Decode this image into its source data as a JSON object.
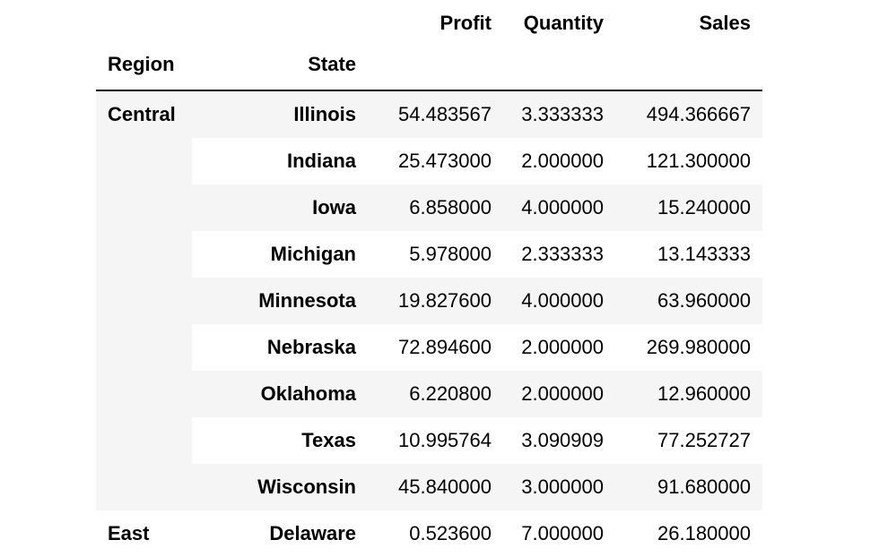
{
  "columns": {
    "profit": "Profit",
    "quantity": "Quantity",
    "sales": "Sales"
  },
  "index_names": {
    "region": "Region",
    "state": "State"
  },
  "rows": [
    {
      "region": "Central",
      "state": "Illinois",
      "profit": "54.483567",
      "quantity": "3.333333",
      "sales": "494.366667"
    },
    {
      "region": "",
      "state": "Indiana",
      "profit": "25.473000",
      "quantity": "2.000000",
      "sales": "121.300000"
    },
    {
      "region": "",
      "state": "Iowa",
      "profit": "6.858000",
      "quantity": "4.000000",
      "sales": "15.240000"
    },
    {
      "region": "",
      "state": "Michigan",
      "profit": "5.978000",
      "quantity": "2.333333",
      "sales": "13.143333"
    },
    {
      "region": "",
      "state": "Minnesota",
      "profit": "19.827600",
      "quantity": "4.000000",
      "sales": "63.960000"
    },
    {
      "region": "",
      "state": "Nebraska",
      "profit": "72.894600",
      "quantity": "2.000000",
      "sales": "269.980000"
    },
    {
      "region": "",
      "state": "Oklahoma",
      "profit": "6.220800",
      "quantity": "2.000000",
      "sales": "12.960000"
    },
    {
      "region": "",
      "state": "Texas",
      "profit": "10.995764",
      "quantity": "3.090909",
      "sales": "77.252727"
    },
    {
      "region": "",
      "state": "Wisconsin",
      "profit": "45.840000",
      "quantity": "3.000000",
      "sales": "91.680000"
    },
    {
      "region": "East",
      "state": "Delaware",
      "profit": "0.523600",
      "quantity": "7.000000",
      "sales": "26.180000"
    }
  ],
  "colors": {
    "stripe": "#f5f5f5",
    "background": "#ffffff",
    "text": "#000000"
  }
}
